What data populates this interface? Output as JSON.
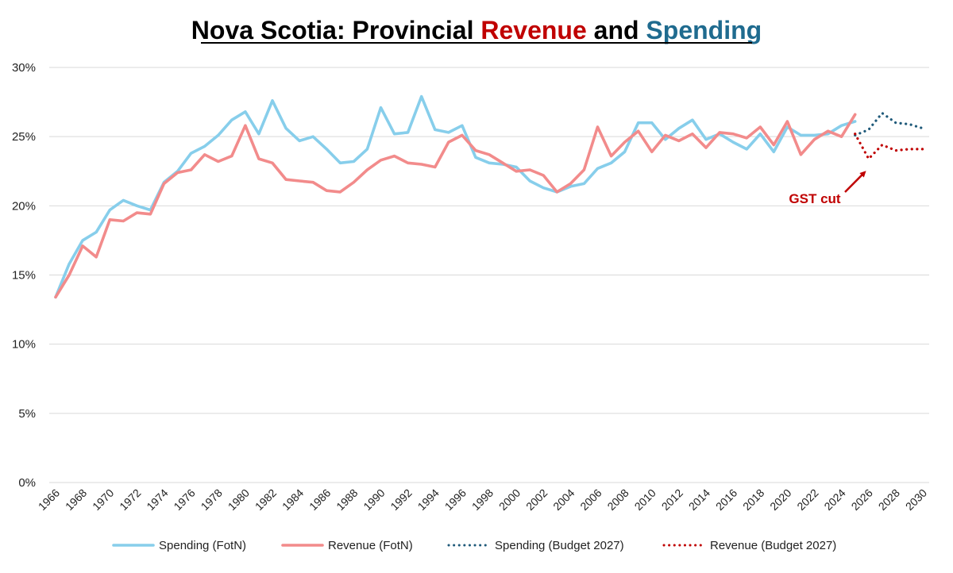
{
  "chart_data": {
    "type": "line",
    "title": {
      "prefix": "Nova Scotia: Provincial ",
      "word1": "Revenue",
      "middle": " and ",
      "word2": "Spending"
    },
    "colors": {
      "spending": "#87ceeb",
      "revenue": "#f28b8b",
      "spending_budget": "#1f5a7a",
      "revenue_budget": "#c00000",
      "title_revenue": "#c00000",
      "title_spending": "#1f6b8f",
      "grid": "#d9d9d9",
      "annotation": "#c00000"
    },
    "xlim": [
      1966,
      2030
    ],
    "ylim": [
      0,
      30
    ],
    "y_ticks": [
      0,
      5,
      10,
      15,
      20,
      25,
      30
    ],
    "y_tick_labels": [
      "0%",
      "5%",
      "10%",
      "15%",
      "20%",
      "25%",
      "30%"
    ],
    "x_tick_labels": [
      "1966",
      "1968",
      "1970",
      "1972",
      "1974",
      "1976",
      "1978",
      "1980",
      "1982",
      "1984",
      "1986",
      "1988",
      "1990",
      "1992",
      "1994",
      "1996",
      "1998",
      "2000",
      "2002",
      "2004",
      "2006",
      "2008",
      "2010",
      "2012",
      "2014",
      "2016",
      "2018",
      "2020",
      "2022",
      "2024",
      "2026",
      "2028",
      "2030"
    ],
    "legend_position": "bottom",
    "series": [
      {
        "name": "Spending (FotN)",
        "style": "solid",
        "color_key": "spending",
        "x": [
          1966,
          1967,
          1968,
          1969,
          1970,
          1971,
          1972,
          1973,
          1974,
          1975,
          1976,
          1977,
          1978,
          1979,
          1980,
          1981,
          1982,
          1983,
          1984,
          1985,
          1986,
          1987,
          1988,
          1989,
          1990,
          1991,
          1992,
          1993,
          1994,
          1995,
          1996,
          1997,
          1998,
          1999,
          2000,
          2001,
          2002,
          2003,
          2004,
          2005,
          2006,
          2007,
          2008,
          2009,
          2010,
          2011,
          2012,
          2013,
          2014,
          2015,
          2016,
          2017,
          2018,
          2019,
          2020,
          2021,
          2022,
          2023,
          2024,
          2025
        ],
        "values": [
          13.4,
          15.8,
          17.5,
          18.1,
          19.7,
          20.4,
          20.0,
          19.7,
          21.7,
          22.5,
          23.8,
          24.3,
          25.1,
          26.2,
          26.8,
          25.2,
          27.6,
          25.6,
          24.7,
          25.0,
          24.1,
          23.1,
          23.2,
          24.1,
          27.1,
          25.2,
          25.3,
          27.9,
          25.5,
          25.3,
          25.8,
          23.5,
          23.1,
          23.0,
          22.8,
          21.8,
          21.3,
          21.0,
          21.4,
          21.6,
          22.7,
          23.1,
          23.9,
          26.0,
          26.0,
          24.8,
          25.6,
          26.2,
          24.8,
          25.2,
          24.6,
          24.1,
          25.2,
          23.9,
          25.7,
          25.1,
          25.1,
          25.2,
          25.8,
          26.1
        ]
      },
      {
        "name": "Revenue (FotN)",
        "style": "solid",
        "color_key": "revenue",
        "x": [
          1966,
          1967,
          1968,
          1969,
          1970,
          1971,
          1972,
          1973,
          1974,
          1975,
          1976,
          1977,
          1978,
          1979,
          1980,
          1981,
          1982,
          1983,
          1984,
          1985,
          1986,
          1987,
          1988,
          1989,
          1990,
          1991,
          1992,
          1993,
          1994,
          1995,
          1996,
          1997,
          1998,
          1999,
          2000,
          2001,
          2002,
          2003,
          2004,
          2005,
          2006,
          2007,
          2008,
          2009,
          2010,
          2011,
          2012,
          2013,
          2014,
          2015,
          2016,
          2017,
          2018,
          2019,
          2020,
          2021,
          2022,
          2023,
          2024,
          2025
        ],
        "values": [
          13.4,
          15.0,
          17.1,
          16.3,
          19.0,
          18.9,
          19.5,
          19.4,
          21.6,
          22.4,
          22.6,
          23.7,
          23.2,
          23.6,
          25.8,
          23.4,
          23.1,
          21.9,
          21.8,
          21.7,
          21.1,
          21.0,
          21.7,
          22.6,
          23.3,
          23.6,
          23.1,
          23.0,
          22.8,
          24.6,
          25.1,
          24.0,
          23.7,
          23.1,
          22.5,
          22.6,
          22.2,
          21.0,
          21.6,
          22.6,
          25.7,
          23.6,
          24.6,
          25.4,
          23.9,
          25.1,
          24.7,
          25.2,
          24.2,
          25.3,
          25.2,
          24.9,
          25.7,
          24.4,
          26.1,
          23.7,
          24.8,
          25.4,
          25.0,
          26.6
        ]
      },
      {
        "name": "Spending (Budget 2027)",
        "style": "dotted",
        "color_key": "spending_budget",
        "x": [
          2025,
          2026,
          2027,
          2028,
          2029,
          2030
        ],
        "values": [
          25.1,
          25.5,
          26.7,
          26.0,
          25.9,
          25.6
        ]
      },
      {
        "name": "Revenue (Budget 2027)",
        "style": "dotted",
        "color_key": "revenue_budget",
        "x": [
          2025,
          2026,
          2027,
          2028,
          2029,
          2030
        ],
        "values": [
          25.2,
          23.4,
          24.4,
          24.0,
          24.1,
          24.1
        ]
      }
    ],
    "annotations": [
      {
        "text": "GST cut",
        "points_to_x": 2026,
        "points_to_y": 23.4
      }
    ]
  }
}
